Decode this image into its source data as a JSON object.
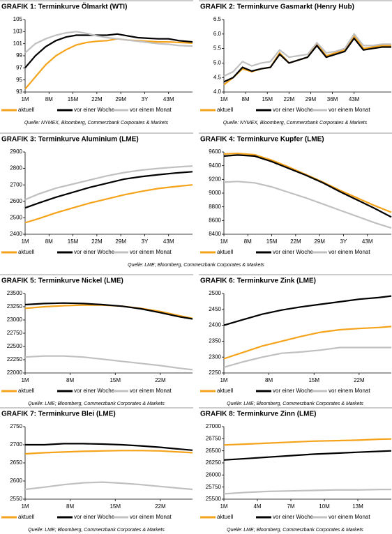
{
  "chart_data": [
    {
      "type": "line",
      "title": "GRAFIK 1: Terminkurve Ölmarkt (WTI)",
      "source": "Quelle: NYMEX, Bloomberg, Commerzbank Corporates & Markets",
      "x": [
        1,
        4,
        7,
        10,
        13,
        16,
        19,
        22,
        25,
        28,
        31,
        34,
        37,
        40,
        43,
        46,
        50
      ],
      "xlim": [
        1,
        50
      ],
      "xticks": [
        {
          "value": 1,
          "label": "1M"
        },
        {
          "value": 8,
          "label": "8M"
        },
        {
          "value": 15,
          "label": "15M"
        },
        {
          "value": 22,
          "label": "22M"
        },
        {
          "value": 29,
          "label": "29M"
        },
        {
          "value": 36,
          "label": "3Y"
        },
        {
          "value": 43,
          "label": "43M"
        }
      ],
      "ylim": [
        93,
        105
      ],
      "yticks": [
        93,
        95,
        97,
        99,
        101,
        103,
        105
      ],
      "series": [
        {
          "name": "aktuell",
          "color": "#f5a31a",
          "values": [
            93.5,
            95.5,
            97.5,
            99,
            100,
            100.8,
            101.2,
            101.4,
            101.5,
            101.8,
            101.6,
            101.5,
            101.4,
            101.3,
            101.3,
            101.2,
            101.1
          ]
        },
        {
          "name": "vor einer Woche",
          "color": "#000000",
          "values": [
            97,
            99,
            100.5,
            101.5,
            102.1,
            102.4,
            102.4,
            102.4,
            102.4,
            102.6,
            102.3,
            102,
            101.9,
            101.8,
            101.8,
            101.5,
            101.3
          ]
        },
        {
          "name": "vor einem Monat",
          "color": "#c0c0c0",
          "values": [
            99.5,
            101,
            101.8,
            102.4,
            102.8,
            103,
            102.7,
            102.3,
            102,
            101.8,
            101.6,
            101.4,
            101.2,
            101,
            100.9,
            100.7,
            100.6
          ]
        }
      ]
    },
    {
      "type": "line",
      "title": "GRAFIK 2: Terminkurve Gasmarkt (Henry Hub)",
      "source": "Quelle: NYMEX, Bloomberg, Commerzbank Corporates & Markets",
      "x": [
        1,
        4,
        7,
        10,
        13,
        16,
        19,
        22,
        25,
        28,
        31,
        34,
        37,
        40,
        43,
        46,
        49,
        52,
        55
      ],
      "xlim": [
        1,
        55
      ],
      "xticks": [
        {
          "value": 1,
          "label": "1M"
        },
        {
          "value": 8,
          "label": "8M"
        },
        {
          "value": 15,
          "label": "15M"
        },
        {
          "value": 22,
          "label": "22M"
        },
        {
          "value": 29,
          "label": "29M"
        },
        {
          "value": 36,
          "label": "36M"
        },
        {
          "value": 43,
          "label": "43M"
        }
      ],
      "ylim": [
        4,
        6.5
      ],
      "yticks": [
        {
          "value": 4,
          "label": "4.0"
        },
        4.5,
        {
          "value": 5,
          "label": "5.0"
        },
        5.5,
        {
          "value": 6,
          "label": "6.0"
        },
        6.5
      ],
      "series": [
        {
          "name": "aktuell",
          "color": "#f5a31a",
          "values": [
            4.25,
            4.5,
            4.8,
            4.7,
            4.8,
            4.85,
            5.35,
            5,
            5.1,
            5.2,
            5.65,
            5.25,
            5.35,
            5.45,
            5.95,
            5.5,
            5.55,
            5.6,
            5.6
          ]
        },
        {
          "name": "vor einer Woche",
          "color": "#000000",
          "values": [
            4.35,
            4.5,
            4.85,
            4.72,
            4.8,
            4.85,
            5.3,
            5,
            5.1,
            5.2,
            5.6,
            5.2,
            5.3,
            5.4,
            5.85,
            5.45,
            5.5,
            5.55,
            5.55
          ]
        },
        {
          "name": "vor einem Monat",
          "color": "#c0c0c0",
          "values": [
            4.55,
            4.7,
            5.05,
            4.9,
            5,
            5.05,
            5.45,
            5.2,
            5.25,
            5.3,
            5.7,
            5.35,
            5.4,
            5.5,
            6,
            5.6,
            5.6,
            5.65,
            5.65
          ]
        }
      ]
    },
    {
      "type": "line",
      "title": "GRAFIK 3: Terminkurve Aluminium (LME)",
      "source": "Quelle: LME; Bloomberg, Commerzbank Corporates & Markets",
      "x": [
        1,
        5,
        10,
        15,
        20,
        25,
        30,
        35,
        40,
        45,
        50
      ],
      "xlim": [
        1,
        50
      ],
      "xticks": [
        {
          "value": 1,
          "label": "1M"
        },
        {
          "value": 8,
          "label": "8M"
        },
        {
          "value": 15,
          "label": "15M"
        },
        {
          "value": 22,
          "label": "22M"
        },
        {
          "value": 29,
          "label": "29M"
        },
        {
          "value": 36,
          "label": "3Y"
        },
        {
          "value": 43,
          "label": "43M"
        }
      ],
      "ylim": [
        2400,
        2900
      ],
      "yticks": [
        2400,
        2500,
        2600,
        2700,
        2800,
        2900
      ],
      "series": [
        {
          "name": "aktuell",
          "color": "#f5a31a",
          "values": [
            2470,
            2495,
            2530,
            2560,
            2590,
            2615,
            2640,
            2660,
            2678,
            2690,
            2700
          ]
        },
        {
          "name": "vor einer Woche",
          "color": "#000000",
          "values": [
            2560,
            2590,
            2625,
            2655,
            2685,
            2710,
            2735,
            2750,
            2762,
            2772,
            2780
          ]
        },
        {
          "name": "vor einem Monat",
          "color": "#c0c0c0",
          "values": [
            2610,
            2645,
            2680,
            2705,
            2730,
            2755,
            2775,
            2790,
            2800,
            2808,
            2815
          ]
        }
      ]
    },
    {
      "type": "line",
      "title": "GRAFIK 4: Terminkurve Kupfer (LME)",
      "x": [
        1,
        5,
        10,
        15,
        20,
        25,
        30,
        35,
        40,
        45,
        50
      ],
      "xlim": [
        1,
        50
      ],
      "xticks": [
        {
          "value": 1,
          "label": "1M"
        },
        {
          "value": 8,
          "label": "8M"
        },
        {
          "value": 15,
          "label": "15M"
        },
        {
          "value": 22,
          "label": "22M"
        },
        {
          "value": 29,
          "label": "29M"
        },
        {
          "value": 36,
          "label": "3Y"
        },
        {
          "value": 43,
          "label": "43M"
        }
      ],
      "ylim": [
        8400,
        9600
      ],
      "yticks": [
        8400,
        8600,
        8800,
        9000,
        9200,
        9400,
        9600
      ],
      "series": [
        {
          "name": "aktuell",
          "color": "#f5a31a",
          "values": [
            9570,
            9580,
            9560,
            9480,
            9380,
            9270,
            9160,
            9040,
            8930,
            8820,
            8720
          ]
        },
        {
          "name": "vor einer Woche",
          "color": "#000000",
          "values": [
            9540,
            9555,
            9540,
            9460,
            9360,
            9260,
            9150,
            9020,
            8900,
            8780,
            8650
          ]
        },
        {
          "name": "vor einem Monat",
          "color": "#c0c0c0",
          "values": [
            9160,
            9170,
            9150,
            9090,
            9010,
            8930,
            8840,
            8750,
            8660,
            8570,
            8490
          ]
        }
      ]
    },
    {
      "type": "line",
      "title": "GRAFIK 5: Terminkurve Nickel (LME)",
      "source": "Quelle: LME; Bloomberg, Commerzbank Corporates & Markets",
      "x": [
        1,
        4,
        7,
        10,
        13,
        16,
        19,
        22,
        25,
        27
      ],
      "xlim": [
        1,
        27
      ],
      "xticks": [
        {
          "value": 1,
          "label": "1M"
        },
        {
          "value": 8,
          "label": "8M"
        },
        {
          "value": 15,
          "label": "15M"
        },
        {
          "value": 22,
          "label": "22M"
        }
      ],
      "ylim": [
        22000,
        23500
      ],
      "yticks": [
        22000,
        22250,
        22500,
        22750,
        23000,
        23250,
        23500
      ],
      "series": [
        {
          "name": "aktuell",
          "color": "#f5a31a",
          "values": [
            23220,
            23250,
            23270,
            23280,
            23280,
            23260,
            23220,
            23160,
            23080,
            23030
          ]
        },
        {
          "name": "vor einer Woche",
          "color": "#000000",
          "values": [
            23290,
            23310,
            23320,
            23310,
            23290,
            23260,
            23210,
            23140,
            23060,
            23020
          ]
        },
        {
          "name": "vor einem Monat",
          "color": "#c0c0c0",
          "values": [
            22300,
            22320,
            22320,
            22300,
            22260,
            22220,
            22180,
            22140,
            22090,
            22060
          ]
        }
      ]
    },
    {
      "type": "line",
      "title": "GRAFIK 6: Terminkurve Zink (LME)",
      "source": "Quelle: LME; Bloomberg, Commerzbank Corporates & Markets",
      "x": [
        1,
        4,
        7,
        10,
        13,
        16,
        19,
        22,
        25,
        27
      ],
      "xlim": [
        1,
        27
      ],
      "xticks": [
        {
          "value": 1,
          "label": "1M"
        },
        {
          "value": 8,
          "label": "8M"
        },
        {
          "value": 15,
          "label": "15M"
        },
        {
          "value": 22,
          "label": "22M"
        }
      ],
      "ylim": [
        2250,
        2500
      ],
      "yticks": [
        2250,
        2300,
        2350,
        2400,
        2450,
        2500
      ],
      "series": [
        {
          "name": "aktuell",
          "color": "#f5a31a",
          "values": [
            2295,
            2315,
            2335,
            2350,
            2365,
            2378,
            2386,
            2390,
            2393,
            2396
          ]
        },
        {
          "name": "vor einer Woche",
          "color": "#000000",
          "values": [
            2400,
            2418,
            2435,
            2448,
            2458,
            2466,
            2474,
            2482,
            2487,
            2492
          ]
        },
        {
          "name": "vor einem Monat",
          "color": "#c0c0c0",
          "values": [
            2268,
            2285,
            2300,
            2312,
            2316,
            2322,
            2330,
            2330,
            2330,
            2330
          ]
        }
      ]
    },
    {
      "type": "line",
      "title": "GRAFIK 7: Terminkurve Blei (LME)",
      "source": "Quelle: LME; Bloomberg, Commerzbank Corporates & Markets",
      "x": [
        1,
        4,
        7,
        10,
        13,
        16,
        19,
        22,
        25,
        27
      ],
      "xlim": [
        1,
        27
      ],
      "xticks": [
        {
          "value": 1,
          "label": "1M"
        },
        {
          "value": 8,
          "label": "8M"
        },
        {
          "value": 15,
          "label": "15M"
        },
        {
          "value": 22,
          "label": "22M"
        }
      ],
      "ylim": [
        2550,
        2750
      ],
      "yticks": [
        2550,
        2600,
        2650,
        2700,
        2750
      ],
      "series": [
        {
          "name": "aktuell",
          "color": "#f5a31a",
          "values": [
            2675,
            2678,
            2680,
            2682,
            2683,
            2684,
            2684,
            2683,
            2680,
            2678
          ]
        },
        {
          "name": "vor einer Woche",
          "color": "#000000",
          "values": [
            2700,
            2700,
            2703,
            2703,
            2702,
            2700,
            2697,
            2693,
            2688,
            2685
          ]
        },
        {
          "name": "vor einem Monat",
          "color": "#c0c0c0",
          "values": [
            2577,
            2583,
            2590,
            2595,
            2597,
            2594,
            2590,
            2585,
            2580,
            2577
          ]
        }
      ]
    },
    {
      "type": "line",
      "title": "GRAFIK 8: Terminkurve Zinn (LME)",
      "source": "Quelle: LME; Bloomberg, Commerzbank Corporates & Markets",
      "x": [
        1,
        3,
        5,
        7,
        9,
        11,
        13,
        15,
        16
      ],
      "xlim": [
        1,
        16
      ],
      "xticks": [
        {
          "value": 1,
          "label": "1M"
        },
        {
          "value": 4,
          "label": "4M"
        },
        {
          "value": 7,
          "label": "7M"
        },
        {
          "value": 10,
          "label": "10M"
        },
        {
          "value": 13,
          "label": "13M"
        }
      ],
      "ylim": [
        25500,
        27000
      ],
      "yticks": [
        25500,
        25750,
        26000,
        26250,
        26500,
        26750,
        27000
      ],
      "series": [
        {
          "name": "aktuell",
          "color": "#f5a31a",
          "values": [
            26620,
            26640,
            26660,
            26680,
            26700,
            26710,
            26720,
            26740,
            26745
          ]
        },
        {
          "name": "vor einer Woche",
          "color": "#000000",
          "values": [
            26310,
            26340,
            26370,
            26400,
            26430,
            26450,
            26470,
            26490,
            26500
          ]
        },
        {
          "name": "vor einem Monat",
          "color": "#c0c0c0",
          "values": [
            25610,
            25640,
            25660,
            25670,
            25680,
            25690,
            25690,
            25700,
            25700
          ]
        }
      ]
    }
  ]
}
